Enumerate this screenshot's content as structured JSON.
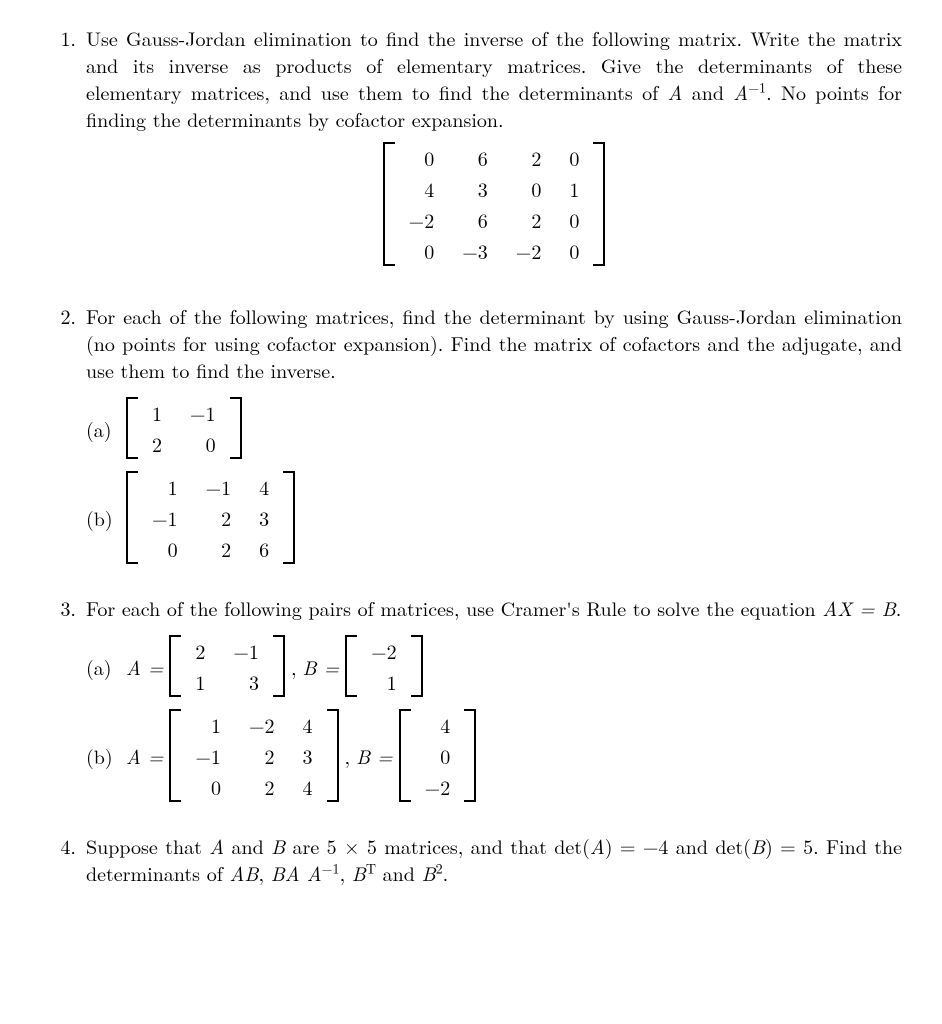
{
  "p1": {
    "num": "1.",
    "text_a": "Use Gauss-Jordan elimination to find the inverse of the following matrix. Write the matrix and its inverse as products of elementary matrices. Give the determinants of these elementary matrices, and use them to find the determinants of ",
    "A": "A",
    "and": " and ",
    "Ainv": "A",
    "sup": "−1",
    "text_b": ". No points for finding the determinants by cofactor expansion.",
    "matrix": [
      [
        "0",
        "6",
        "2",
        "0"
      ],
      [
        "4",
        "3",
        "0",
        "1"
      ],
      [
        "−2",
        "6",
        "2",
        "0"
      ],
      [
        "0",
        "−3",
        "−2",
        "0"
      ]
    ]
  },
  "p2": {
    "num": "2.",
    "text": "For each of the following matrices, find the determinant by using Gauss-Jordan elimination (no points for using cofactor expansion). Find the matrix of cofactors and the adjugate, and use them to find the inverse.",
    "a": {
      "label": "(a)",
      "matrix": [
        [
          "1",
          "−1"
        ],
        [
          "2",
          "0"
        ]
      ]
    },
    "b": {
      "label": "(b)",
      "matrix": [
        [
          "1",
          "−1",
          "4"
        ],
        [
          "−1",
          "2",
          "3"
        ],
        [
          "0",
          "2",
          "6"
        ]
      ]
    }
  },
  "p3": {
    "num": "3.",
    "text_a": "For each of the following pairs of matrices, use Cramer's Rule to solve the equation ",
    "eq": "AX = B",
    "text_b": ".",
    "a": {
      "label": "(a)",
      "Aeq": "A =",
      "A": [
        [
          "2",
          "−1"
        ],
        [
          "1",
          "3"
        ]
      ],
      "comma": ",",
      "Beq": "B =",
      "B": [
        [
          "−2"
        ],
        [
          "1"
        ]
      ]
    },
    "b": {
      "label": "(b)",
      "Aeq": "A =",
      "A": [
        [
          "1",
          "−2",
          "4"
        ],
        [
          "−1",
          "2",
          "3"
        ],
        [
          "0",
          "2",
          "4"
        ]
      ],
      "comma": ",",
      "Beq": "B =",
      "B": [
        [
          "4"
        ],
        [
          "0"
        ],
        [
          "−2"
        ]
      ]
    }
  },
  "p4": {
    "num": "4.",
    "text_a": "Suppose that ",
    "A": "A",
    "and1": " and ",
    "B": "B",
    "text_b": " are 5 × 5 matrices, and that det(",
    "A2": "A",
    "text_c": ") = −4 and det(",
    "B2": "B",
    "text_d": ") = 5. Find the determinants of ",
    "AB": "AB",
    "c1": ", ",
    "BAAinv": "BA A",
    "sup1": "−1",
    "c2": ", ",
    "BT": "B",
    "supT": "T",
    "and2": " and ",
    "B3": "B",
    "sup2": "2",
    "dot": "."
  }
}
